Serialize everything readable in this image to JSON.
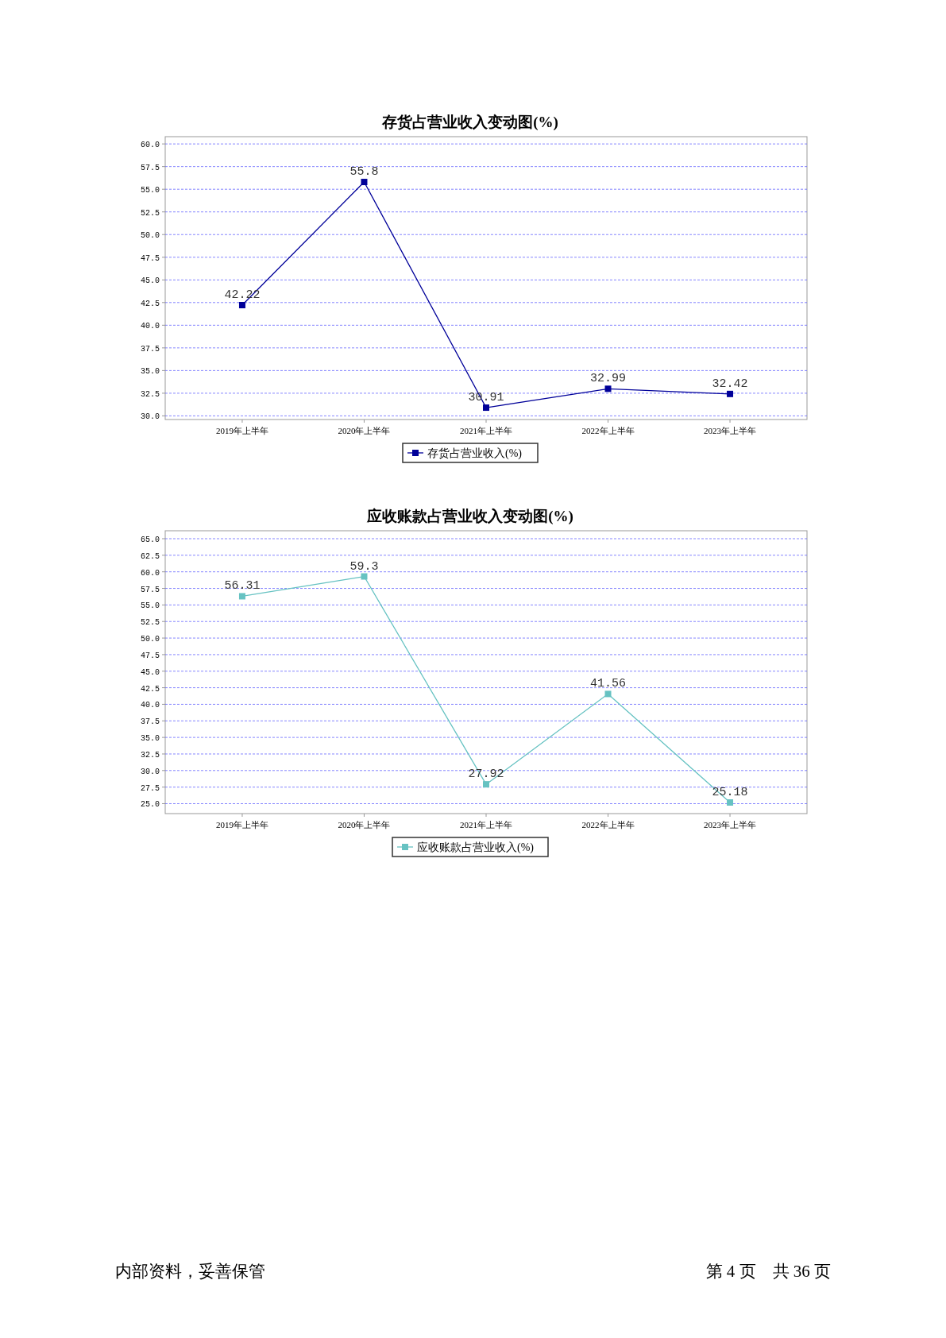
{
  "chart_data": [
    {
      "type": "line",
      "title": "存货占营业收入变动图(%)",
      "categories": [
        "2019年上半年",
        "2020年上半年",
        "2021年上半年",
        "2022年上半年",
        "2023年上半年"
      ],
      "series": [
        {
          "name": "存货占营业收入(%)",
          "color": "#000099",
          "values": [
            42.22,
            55.8,
            30.91,
            32.99,
            32.42
          ]
        }
      ],
      "ylim": [
        29.6,
        60.8
      ],
      "yticks": [
        {
          "value": 30,
          "label": "30.0"
        },
        {
          "value": 32.5,
          "label": "32.5"
        },
        {
          "value": 35,
          "label": "35.0"
        },
        {
          "value": 37.5,
          "label": "37.5"
        },
        {
          "value": 40,
          "label": "40.0"
        },
        {
          "value": 42.5,
          "label": "42.5"
        },
        {
          "value": 45,
          "label": "45.0"
        },
        {
          "value": 47.5,
          "label": "47.5"
        },
        {
          "value": 50,
          "label": "50.0"
        },
        {
          "value": 52.5,
          "label": "52.5"
        },
        {
          "value": 55,
          "label": "55.0"
        },
        {
          "value": 57.5,
          "label": "57.5"
        },
        {
          "value": 60,
          "label": "60.0"
        }
      ],
      "grid": "y",
      "legend": "bottom",
      "marker": "square",
      "line_style": "solid",
      "data_labels": true
    },
    {
      "type": "line",
      "title": "应收账款占营业收入变动图(%)",
      "categories": [
        "2019年上半年",
        "2020年上半年",
        "2021年上半年",
        "2022年上半年",
        "2023年上半年"
      ],
      "series": [
        {
          "name": "应收账款占营业收入(%)",
          "color": "#66c2c2",
          "values": [
            56.31,
            59.3,
            27.92,
            41.56,
            25.18
          ]
        }
      ],
      "ylim": [
        23.5,
        66.2
      ],
      "yticks": [
        {
          "value": 25,
          "label": "25.0"
        },
        {
          "value": 27.5,
          "label": "27.5"
        },
        {
          "value": 30,
          "label": "30.0"
        },
        {
          "value": 32.5,
          "label": "32.5"
        },
        {
          "value": 35,
          "label": "35.0"
        },
        {
          "value": 37.5,
          "label": "37.5"
        },
        {
          "value": 40,
          "label": "40.0"
        },
        {
          "value": 42.5,
          "label": "42.5"
        },
        {
          "value": 45,
          "label": "45.0"
        },
        {
          "value": 47.5,
          "label": "47.5"
        },
        {
          "value": 50,
          "label": "50.0"
        },
        {
          "value": 52.5,
          "label": "52.5"
        },
        {
          "value": 55,
          "label": "55.0"
        },
        {
          "value": 57.5,
          "label": "57.5"
        },
        {
          "value": 60,
          "label": "60.0"
        },
        {
          "value": 62.5,
          "label": "62.5"
        },
        {
          "value": 65,
          "label": "65.0"
        }
      ],
      "grid": "y",
      "legend": "bottom",
      "marker": "square",
      "line_style": "solid",
      "data_labels": true,
      "annotations": [
        "内部资料，妥善保管",
        "第 4 页　共 36 页"
      ]
    }
  ]
}
